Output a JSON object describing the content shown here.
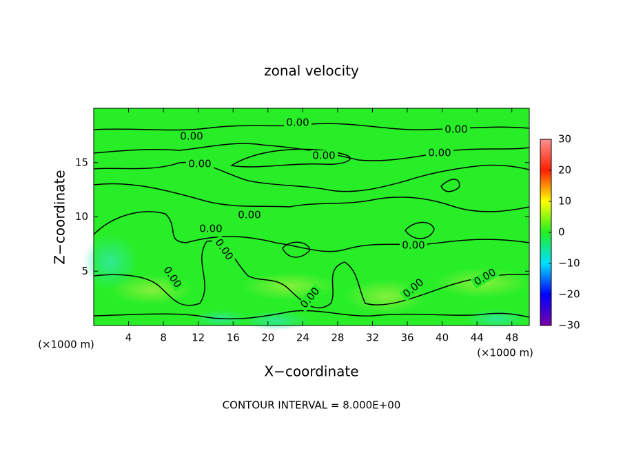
{
  "chart_data": {
    "type": "contour",
    "title": "zonal velocity",
    "x_label": "X−coordinate",
    "y_label": "Z−coordinate",
    "x_unit_label": "(×1000 m)",
    "footer": "CONTOUR INTERVAL = 8.000E+00",
    "xlim": [
      0,
      50
    ],
    "xticks": [
      4,
      8,
      12,
      16,
      20,
      24,
      28,
      32,
      36,
      40,
      44,
      48
    ],
    "ylim": [
      0,
      20
    ],
    "yticks": [
      5,
      10,
      15
    ],
    "contour_levels": [
      {
        "value": 0,
        "label": "0.00"
      }
    ],
    "colorbar_lim": [
      -30,
      30
    ],
    "colorbar_ticks": [
      {
        "value": 30,
        "label": "30"
      },
      {
        "value": 20,
        "label": "20"
      },
      {
        "value": 10,
        "label": "10"
      },
      {
        "value": 0,
        "label": "0"
      },
      {
        "value": -10,
        "label": "−10"
      },
      {
        "value": -20,
        "label": "−20"
      },
      {
        "value": -30,
        "label": "−30"
      }
    ],
    "colormap": [
      "#7a00a8",
      "#0000ff",
      "#00e0ff",
      "#22ee22",
      "#ffff00",
      "#ff2000",
      "#ff9090"
    ],
    "field_color": "#28ee28"
  }
}
